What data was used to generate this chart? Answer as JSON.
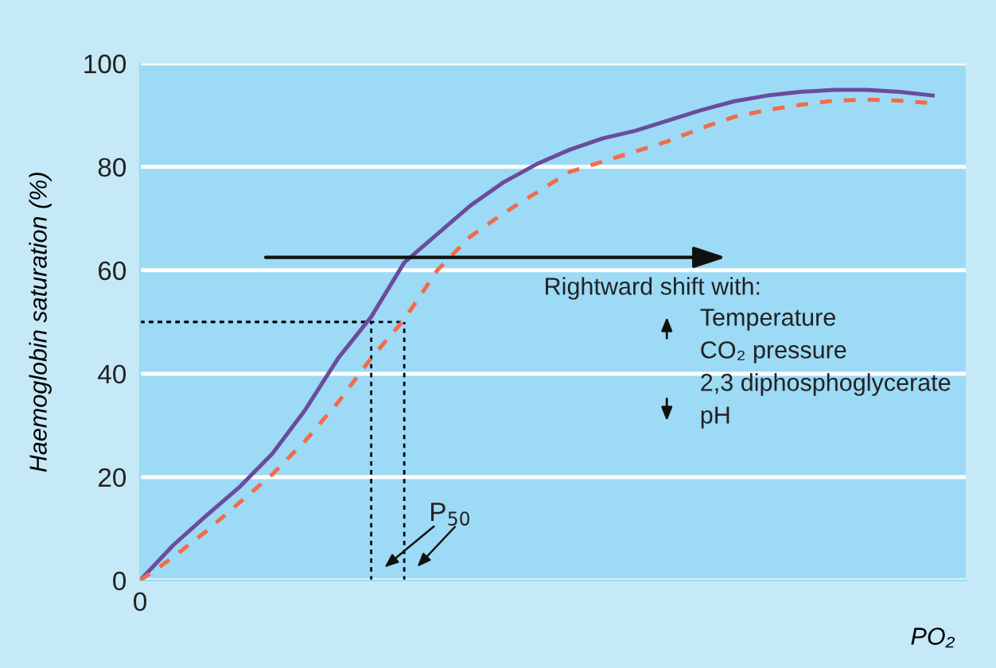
{
  "chart_data": {
    "type": "line",
    "xlabel": "PO₂",
    "ylabel": "Haemoglobin saturation (%)",
    "categories": [
      "0",
      null,
      null,
      null,
      null,
      null,
      null,
      null,
      null,
      null,
      null,
      null,
      null,
      null,
      null,
      null,
      null,
      null,
      null,
      null,
      null,
      null,
      null,
      null,
      null
    ],
    "ylim": [
      0,
      100
    ],
    "yticks": [
      0,
      20,
      40,
      60,
      80,
      100
    ],
    "grid": "y",
    "marker": "none",
    "series": [
      {
        "color": "#6a4c9c",
        "line_style": "solid",
        "values": [
          0,
          6.8,
          12.5,
          18,
          24.5,
          33,
          43,
          51,
          61.5,
          67,
          72.5,
          77,
          80.5,
          83.3,
          85.5,
          87,
          89,
          91,
          92.7,
          93.8,
          94.5,
          94.9,
          94.9,
          94.5,
          93.8
        ]
      },
      {
        "color": "#f26b4a",
        "line_style": "dashed",
        "values": [
          0,
          4.5,
          9.5,
          15,
          20.5,
          27,
          34.5,
          43,
          50.5,
          60,
          66.5,
          71,
          75,
          79,
          81,
          83,
          85,
          87.5,
          89.7,
          91,
          92,
          92.8,
          93,
          92.8,
          92.3
        ]
      },
      {
        "color": "#000000",
        "line_style": "dotted",
        "values": [
          50,
          50,
          50,
          50,
          50,
          50,
          50,
          50,
          null,
          null,
          null,
          null,
          null,
          null,
          null,
          null,
          null,
          null,
          null,
          null,
          null,
          null,
          null,
          null,
          null
        ],
        "errors": [
          null,
          null,
          null,
          null,
          null,
          null,
          null,
          [
            0,
            50
          ],
          null,
          null,
          null,
          null,
          null,
          null,
          null,
          null,
          null,
          null,
          null,
          null,
          null,
          null,
          null,
          null,
          null
        ]
      },
      {
        "color": "#000000",
        "line_style": "dotted",
        "values": [
          50,
          50,
          50,
          50,
          50,
          50,
          50,
          50,
          50,
          null,
          null,
          null,
          null,
          null,
          null,
          null,
          null,
          null,
          null,
          null,
          null,
          null,
          null,
          null,
          null
        ],
        "errors": [
          null,
          null,
          null,
          null,
          null,
          null,
          null,
          null,
          [
            0,
            50
          ],
          null,
          null,
          null,
          null,
          null,
          null,
          null,
          null,
          null,
          null,
          null,
          null,
          null,
          null,
          null,
          null
        ]
      }
    ],
    "annotations": [
      "Rightward shift with:",
      "Temperature",
      "CO₂ pressure",
      "2,3 diphosphoglycerate",
      "pH",
      "P$_{50}$"
    ]
  }
}
